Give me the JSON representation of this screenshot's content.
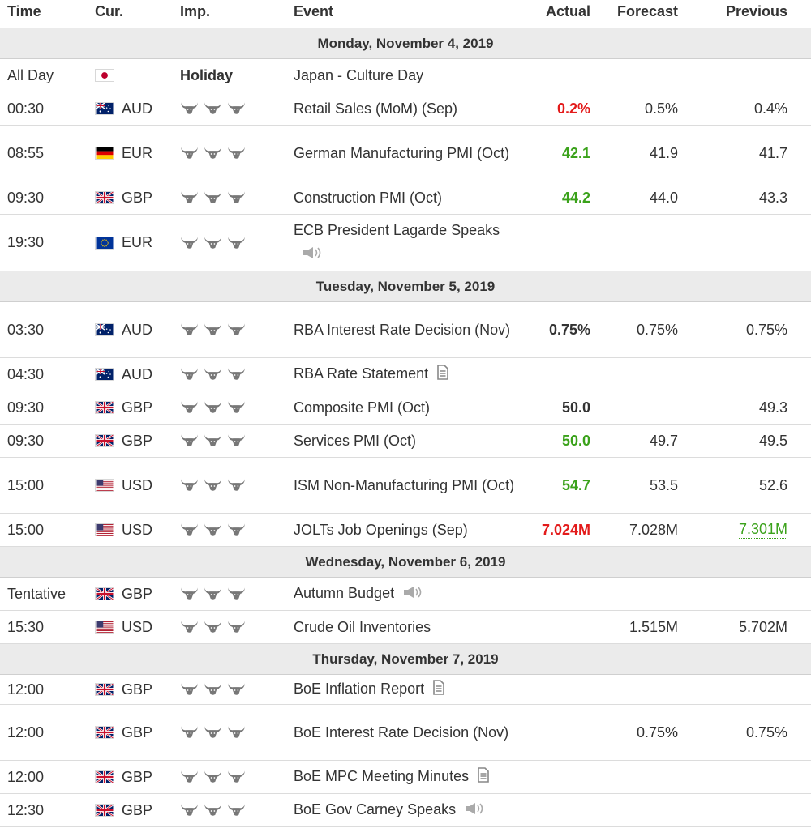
{
  "headers": {
    "time": "Time",
    "cur": "Cur.",
    "imp": "Imp.",
    "event": "Event",
    "actual": "Actual",
    "forecast": "Forecast",
    "previous": "Previous"
  },
  "days": [
    {
      "label": "Monday, November 4, 2019",
      "rows": [
        {
          "time": "All Day",
          "flag": "jp",
          "cur": "",
          "imp": "Holiday",
          "event": "Japan - Culture Day",
          "actual": "",
          "forecast": "",
          "previous": "",
          "h": 41
        },
        {
          "time": "00:30",
          "flag": "au",
          "cur": "AUD",
          "imp": "bulls",
          "event": "Retail Sales (MoM) (Sep)",
          "actual": "0.2%",
          "actual_class": "red",
          "forecast": "0.5%",
          "previous": "0.4%",
          "h": 41
        },
        {
          "time": "08:55",
          "flag": "de",
          "cur": "EUR",
          "imp": "bulls",
          "event": "German Manufacturing PMI (Oct)",
          "actual": "42.1",
          "actual_class": "green",
          "forecast": "41.9",
          "previous": "41.7",
          "h": 69
        },
        {
          "time": "09:30",
          "flag": "gb",
          "cur": "GBP",
          "imp": "bulls",
          "event": "Construction PMI (Oct)",
          "actual": "44.2",
          "actual_class": "green",
          "forecast": "44.0",
          "previous": "43.3",
          "h": 41
        },
        {
          "time": "19:30",
          "flag": "eu",
          "cur": "EUR",
          "imp": "bulls",
          "event": "ECB President Lagarde Speaks",
          "icon": "speaker",
          "actual": "",
          "forecast": "",
          "previous": "",
          "h": 70
        }
      ]
    },
    {
      "label": "Tuesday, November 5, 2019",
      "rows": [
        {
          "time": "03:30",
          "flag": "au",
          "cur": "AUD",
          "imp": "bulls",
          "event": "RBA Interest Rate Decision (Nov)",
          "actual": "0.75%",
          "actual_class": "",
          "forecast": "0.75%",
          "previous": "0.75%",
          "h": 69
        },
        {
          "time": "04:30",
          "flag": "au",
          "cur": "AUD",
          "imp": "bulls",
          "event": "RBA Rate Statement",
          "icon": "doc",
          "actual": "",
          "forecast": "",
          "previous": "",
          "h": 41
        },
        {
          "time": "09:30",
          "flag": "gb",
          "cur": "GBP",
          "imp": "bulls",
          "event": "Composite PMI (Oct)",
          "actual": "50.0",
          "actual_class": "",
          "forecast": "",
          "previous": "49.3",
          "h": 41
        },
        {
          "time": "09:30",
          "flag": "gb",
          "cur": "GBP",
          "imp": "bulls",
          "event": "Services PMI (Oct)",
          "actual": "50.0",
          "actual_class": "green",
          "forecast": "49.7",
          "previous": "49.5",
          "h": 41
        },
        {
          "time": "15:00",
          "flag": "us",
          "cur": "USD",
          "imp": "bulls",
          "event": "ISM Non-Manufacturing PMI (Oct)",
          "actual": "54.7",
          "actual_class": "green",
          "forecast": "53.5",
          "previous": "52.6",
          "h": 69
        },
        {
          "time": "15:00",
          "flag": "us",
          "cur": "USD",
          "imp": "bulls",
          "event": "JOLTs Job Openings (Sep)",
          "actual": "7.024M",
          "actual_class": "red",
          "forecast": "7.028M",
          "previous": "7.301M",
          "previous_class": "green ul",
          "h": 41
        }
      ]
    },
    {
      "label": "Wednesday, November 6, 2019",
      "rows": [
        {
          "time": "Tentative",
          "flag": "gb",
          "cur": "GBP",
          "imp": "bulls",
          "event": "Autumn Budget",
          "icon": "speaker",
          "actual": "",
          "forecast": "",
          "previous": "",
          "h": 41
        },
        {
          "time": "15:30",
          "flag": "us",
          "cur": "USD",
          "imp": "bulls",
          "event": "Crude Oil Inventories",
          "actual": "",
          "forecast": "1.515M",
          "previous": "5.702M",
          "h": 41
        }
      ]
    },
    {
      "label": "Thursday, November 7, 2019",
      "rows": [
        {
          "time": "12:00",
          "flag": "gb",
          "cur": "GBP",
          "imp": "bulls",
          "event": "BoE Inflation Report",
          "icon": "doc",
          "actual": "",
          "forecast": "",
          "previous": "",
          "h": 37
        },
        {
          "time": "12:00",
          "flag": "gb",
          "cur": "GBP",
          "imp": "bulls",
          "event": "BoE Interest Rate Decision (Nov)",
          "actual": "",
          "forecast": "0.75%",
          "previous": "0.75%",
          "h": 69
        },
        {
          "time": "12:00",
          "flag": "gb",
          "cur": "GBP",
          "imp": "bulls",
          "event": "BoE MPC Meeting Minutes",
          "icon": "doc",
          "actual": "",
          "forecast": "",
          "previous": "",
          "h": 41
        },
        {
          "time": "12:30",
          "flag": "gb",
          "cur": "GBP",
          "imp": "bulls",
          "event": "BoE Gov Carney Speaks",
          "icon": "speaker",
          "actual": "",
          "forecast": "",
          "previous": "",
          "h": 41
        }
      ]
    }
  ],
  "colors": {
    "green": "#3ba21b",
    "red": "#e31b1b",
    "day_bg": "#ebebeb",
    "bull": "#777777"
  }
}
